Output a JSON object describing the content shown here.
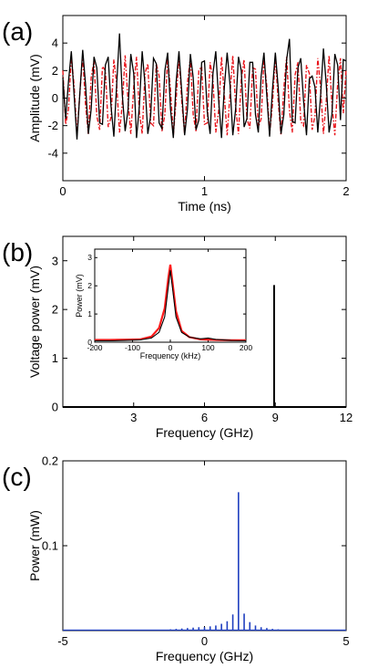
{
  "chart_data": [
    {
      "type": "line",
      "panel_label": "(a)",
      "xlabel": "Time (ns)",
      "ylabel": "Amplitude (mV)",
      "xlim": [
        0,
        2
      ],
      "ylim": [
        -6,
        6
      ],
      "xticks": [
        0,
        1,
        2
      ],
      "yticks": [
        -4,
        -2,
        0,
        2,
        4
      ],
      "grid": false,
      "series": [
        {
          "style": "solid",
          "color": "#000000",
          "x": [
            0,
            0.02,
            0.04,
            0.06,
            0.08,
            0.1,
            0.12,
            0.14,
            0.16,
            0.18,
            0.2,
            0.22,
            0.24,
            0.26,
            0.28,
            0.3,
            0.32,
            0.34,
            0.36,
            0.38,
            0.4,
            0.42,
            0.44,
            0.46,
            0.48,
            0.5,
            0.52,
            0.54,
            0.56,
            0.58,
            0.6,
            0.62,
            0.64,
            0.66,
            0.68,
            0.7,
            0.72,
            0.74,
            0.76,
            0.78,
            0.8,
            0.82,
            0.84,
            0.86,
            0.88,
            0.9,
            0.92,
            0.94,
            0.96,
            0.98,
            1.0,
            1.02,
            1.04,
            1.06,
            1.08,
            1.1,
            1.12,
            1.14,
            1.16,
            1.18,
            1.2,
            1.22,
            1.24,
            1.26,
            1.28,
            1.3,
            1.32,
            1.34,
            1.36,
            1.38,
            1.4,
            1.42,
            1.44,
            1.46,
            1.48,
            1.5,
            1.52,
            1.54,
            1.56,
            1.58,
            1.6,
            1.62,
            1.64,
            1.66,
            1.68,
            1.7,
            1.72,
            1.74,
            1.76,
            1.78,
            1.8,
            1.82,
            1.84,
            1.86,
            1.88,
            1.9,
            1.92,
            1.94,
            1.96,
            1.98,
            2.0
          ],
          "y": [
            1.5,
            -1.5,
            1.2,
            3.4,
            0.2,
            -3.0,
            0.4,
            3.5,
            1.0,
            -2.6,
            -0.8,
            3.0,
            2.2,
            -1.8,
            -1.9,
            2.4,
            3.0,
            -0.6,
            -2.8,
            1.0,
            4.7,
            0.2,
            -2.4,
            -0.9,
            3.2,
            1.8,
            -2.9,
            -0.6,
            3.4,
            1.0,
            -2.6,
            -1.3,
            2.9,
            2.5,
            -1.8,
            -2.2,
            2.0,
            3.3,
            -0.8,
            -2.9,
            1.2,
            3.4,
            0.4,
            -2.7,
            -0.8,
            3.2,
            1.5,
            -2.3,
            -1.6,
            2.6,
            2.7,
            -1.0,
            -2.6,
            1.8,
            3.4,
            -0.2,
            -2.9,
            0.8,
            3.3,
            1.0,
            -2.7,
            -0.8,
            3.0,
            2.0,
            -2.1,
            -1.5,
            2.6,
            2.6,
            -1.2,
            -2.5,
            1.6,
            3.3,
            0.2,
            -2.8,
            0.6,
            3.3,
            0.8,
            -2.6,
            -1.2,
            2.8,
            4.3,
            -1.7,
            -1.8,
            2.2,
            2.9,
            -0.2,
            -2.7,
            1.4,
            1.6,
            0.8,
            -2.5,
            0.2,
            3.6,
            1.0,
            -2.5,
            -1.2,
            3.2,
            2.4,
            -1.6,
            2.8,
            2.7
          ]
        },
        {
          "style": "dashdot",
          "color": "#e8141b",
          "x": [
            0,
            0.02,
            0.04,
            0.06,
            0.08,
            0.1,
            0.12,
            0.14,
            0.16,
            0.18,
            0.2,
            0.22,
            0.24,
            0.26,
            0.28,
            0.3,
            0.32,
            0.34,
            0.36,
            0.38,
            0.4,
            0.42,
            0.44,
            0.46,
            0.48,
            0.5,
            0.52,
            0.54,
            0.56,
            0.58,
            0.6,
            0.62,
            0.64,
            0.66,
            0.68,
            0.7,
            0.72,
            0.74,
            0.76,
            0.78,
            0.8,
            0.82,
            0.84,
            0.86,
            0.88,
            0.9,
            0.92,
            0.94,
            0.96,
            0.98,
            1.0,
            1.02,
            1.04,
            1.06,
            1.08,
            1.1,
            1.12,
            1.14,
            1.16,
            1.18,
            1.2,
            1.22,
            1.24,
            1.26,
            1.28,
            1.3,
            1.32,
            1.34,
            1.36,
            1.38,
            1.4,
            1.42,
            1.44,
            1.46,
            1.48,
            1.5,
            1.52,
            1.54,
            1.56,
            1.58,
            1.6,
            1.62,
            1.64,
            1.66,
            1.68,
            1.7,
            1.72,
            1.74,
            1.76,
            1.78,
            1.8,
            1.82,
            1.84,
            1.86,
            1.88,
            1.9,
            1.92,
            1.94,
            1.96,
            1.98,
            2.0
          ],
          "y": [
            2.0,
            -1.9,
            -0.8,
            3.0,
            0.9,
            -2.7,
            0.4,
            3.1,
            -0.5,
            -2.6,
            1.5,
            2.7,
            -1.3,
            -2.3,
            2.3,
            2.0,
            -2.1,
            -1.4,
            2.8,
            1.0,
            -2.5,
            -0.4,
            3.1,
            -0.1,
            -2.6,
            0.8,
            3.0,
            -1.0,
            -2.6,
            1.8,
            2.5,
            -1.8,
            -2.0,
            2.5,
            1.6,
            -2.4,
            -1.2,
            3.0,
            0.6,
            -2.7,
            -0.1,
            3.1,
            -0.3,
            -2.6,
            1.1,
            2.9,
            -1.2,
            -2.4,
            2.0,
            2.3,
            -1.9,
            -1.8,
            2.6,
            1.3,
            -2.5,
            -0.9,
            3.0,
            0.2,
            -2.7,
            0.3,
            3.1,
            -0.6,
            -2.6,
            1.4,
            2.8,
            -1.5,
            -2.2,
            2.2,
            2.1,
            -2.1,
            -1.5,
            2.8,
            0.9,
            -2.6,
            -0.5,
            3.1,
            -0.2,
            -2.7,
            0.7,
            3.0,
            -0.9,
            -2.5,
            1.7,
            2.6,
            -1.7,
            -2.0,
            2.4,
            1.8,
            -2.3,
            -1.3,
            2.9,
            0.7,
            -2.6,
            -0.2,
            3.1,
            -0.4,
            -2.7,
            1.0,
            2.9,
            -1.1,
            2.1
          ]
        }
      ]
    },
    {
      "type": "bar",
      "panel_label": "(b)",
      "xlabel": "Frequency (GHz)",
      "ylabel": "Voltage power (mV)",
      "xlim": [
        0,
        12
      ],
      "ylim": [
        0,
        3.5
      ],
      "xticks": [
        3,
        6,
        9,
        12
      ],
      "yticks": [
        0,
        1,
        2,
        3
      ],
      "grid": false,
      "peaks": [
        {
          "x": 8.95,
          "y": 2.5
        }
      ],
      "inset": {
        "type": "line",
        "xlabel": "Frequency (kHz)",
        "ylabel": "Power (mV)",
        "xlim": [
          -200,
          200
        ],
        "ylim": [
          0,
          3.3
        ],
        "xticks": [
          -200,
          -100,
          0,
          100,
          200
        ],
        "yticks": [
          0,
          1,
          2,
          3
        ],
        "series": [
          {
            "color": "#ff1a1a",
            "width": 2.2,
            "x": [
              -200,
              -160,
              -120,
              -80,
              -50,
              -30,
              -15,
              -5,
              0,
              5,
              15,
              30,
              50,
              80,
              120,
              160,
              200
            ],
            "y": [
              0.08,
              0.08,
              0.09,
              0.1,
              0.2,
              0.5,
              1.2,
              2.3,
              2.75,
              2.2,
              1.1,
              0.4,
              0.18,
              0.1,
              0.08,
              0.07,
              0.07
            ]
          },
          {
            "color": "#000000",
            "width": 1.1,
            "x": [
              -200,
              -160,
              -120,
              -80,
              -50,
              -30,
              -15,
              -5,
              0,
              5,
              15,
              30,
              50,
              80,
              100,
              120,
              160,
              200
            ],
            "y": [
              0.05,
              0.05,
              0.06,
              0.08,
              0.15,
              0.35,
              0.9,
              2.0,
              2.55,
              2.0,
              0.9,
              0.35,
              0.18,
              0.12,
              0.15,
              0.1,
              0.06,
              0.05
            ]
          }
        ]
      }
    },
    {
      "type": "line",
      "panel_label": "(c)",
      "xlabel": "Frequency (GHz)",
      "ylabel": "Power (mW)",
      "xlim": [
        -5,
        5
      ],
      "ylim": [
        0,
        0.2
      ],
      "xticks": [
        -5,
        0,
        5
      ],
      "yticks": [
        0.1,
        0.2
      ],
      "grid": false,
      "series": [
        {
          "color": "#1f3fbf",
          "peaks_x": [
            -1.6,
            -1.4,
            -1.2,
            -1.0,
            -0.8,
            -0.6,
            -0.4,
            -0.2,
            0.0,
            0.2,
            0.4,
            0.6,
            0.8,
            1.0,
            1.2,
            1.4,
            1.6,
            1.8,
            2.0,
            2.2,
            2.4,
            2.6,
            2.8,
            3.0,
            3.2
          ],
          "peaks_y": [
            0.001,
            0.001,
            0.0015,
            0.002,
            0.0025,
            0.003,
            0.0035,
            0.004,
            0.004,
            0.005,
            0.006,
            0.008,
            0.011,
            0.019,
            0.163,
            0.02,
            0.01,
            0.006,
            0.004,
            0.003,
            0.002,
            0.0015,
            0.001,
            0.001,
            0.001
          ]
        }
      ]
    }
  ]
}
